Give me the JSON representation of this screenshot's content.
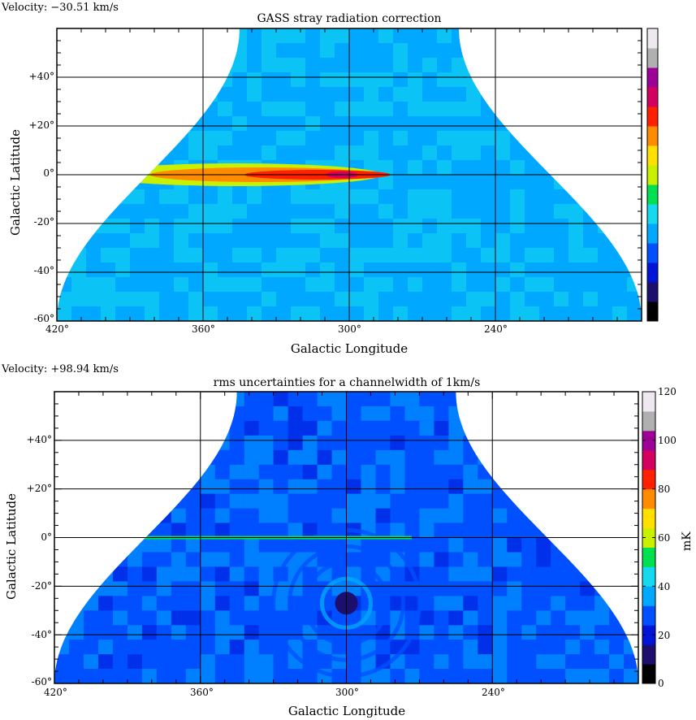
{
  "chart_data": [
    {
      "type": "heatmap",
      "velocity_label": "Velocity: −30.51 km/s",
      "title": "GASS stray radiation correction",
      "xlabel": "Galactic Longitude",
      "ylabel": "Galactic Latitude",
      "xlim": [
        420,
        180
      ],
      "ylim": [
        -60,
        60
      ],
      "x_ticks": [
        {
          "value": 420,
          "label": "420°"
        },
        {
          "value": 360,
          "label": "360°"
        },
        {
          "value": 300,
          "label": "300°"
        },
        {
          "value": 240,
          "label": "240°"
        }
      ],
      "y_ticks": [
        {
          "value": 40,
          "label": "+40°"
        },
        {
          "value": 20,
          "label": "+20°"
        },
        {
          "value": 0,
          "label": "0°"
        },
        {
          "value": -20,
          "label": "-20°"
        },
        {
          "value": -40,
          "label": "-40°"
        },
        {
          "value": -60,
          "label": "-60°"
        }
      ],
      "colorbar": {
        "labels": [],
        "unit": ""
      },
      "grid": true,
      "features": {
        "mean_level": 0.33,
        "ridge": {
          "lon_start": 405,
          "lon_end": 287,
          "lat": 0,
          "peak_lon": 303,
          "peak_level": 0.78
        }
      }
    },
    {
      "type": "heatmap",
      "velocity_label": "Velocity: +98.94 km/s",
      "title": "rms uncertainties for a channelwidth of 1km/s",
      "xlabel": "Galactic Longitude",
      "ylabel": "Galactic Latitude",
      "xlim": [
        420,
        180
      ],
      "ylim": [
        -60,
        60
      ],
      "x_ticks": [
        {
          "value": 420,
          "label": "420°"
        },
        {
          "value": 360,
          "label": "360°"
        },
        {
          "value": 300,
          "label": "300°"
        },
        {
          "value": 240,
          "label": "240°"
        }
      ],
      "y_ticks": [
        {
          "value": 40,
          "label": "+40°"
        },
        {
          "value": 20,
          "label": "+20°"
        },
        {
          "value": 0,
          "label": "0°"
        },
        {
          "value": -20,
          "label": "-20°"
        },
        {
          "value": -40,
          "label": "-40°"
        },
        {
          "value": -60,
          "label": "-60°"
        }
      ],
      "colorbar": {
        "labels": [
          {
            "value": 120,
            "label": "120"
          },
          {
            "value": 100,
            "label": "100"
          },
          {
            "value": 80,
            "label": "80"
          },
          {
            "value": 60,
            "label": "60"
          },
          {
            "value": 40,
            "label": "40"
          },
          {
            "value": 20,
            "label": "20"
          },
          {
            "value": 0,
            "label": "0"
          }
        ],
        "range": [
          0,
          120
        ],
        "unit": "mK"
      },
      "grid": true,
      "features": {
        "mean_level_mK": 30,
        "low_noise_center": {
          "lon": 300,
          "lat": -27,
          "level_mK": 8
        }
      }
    }
  ],
  "colors": {
    "scale": [
      "#000000",
      "#1c0f6e",
      "#0015d8",
      "#0050ff",
      "#00a8ff",
      "#16d8ee",
      "#00e050",
      "#c8f000",
      "#ffe000",
      "#ff8c00",
      "#ff2000",
      "#d40060",
      "#9c0096",
      "#b0b0b0",
      "#f0e8f0"
    ]
  }
}
